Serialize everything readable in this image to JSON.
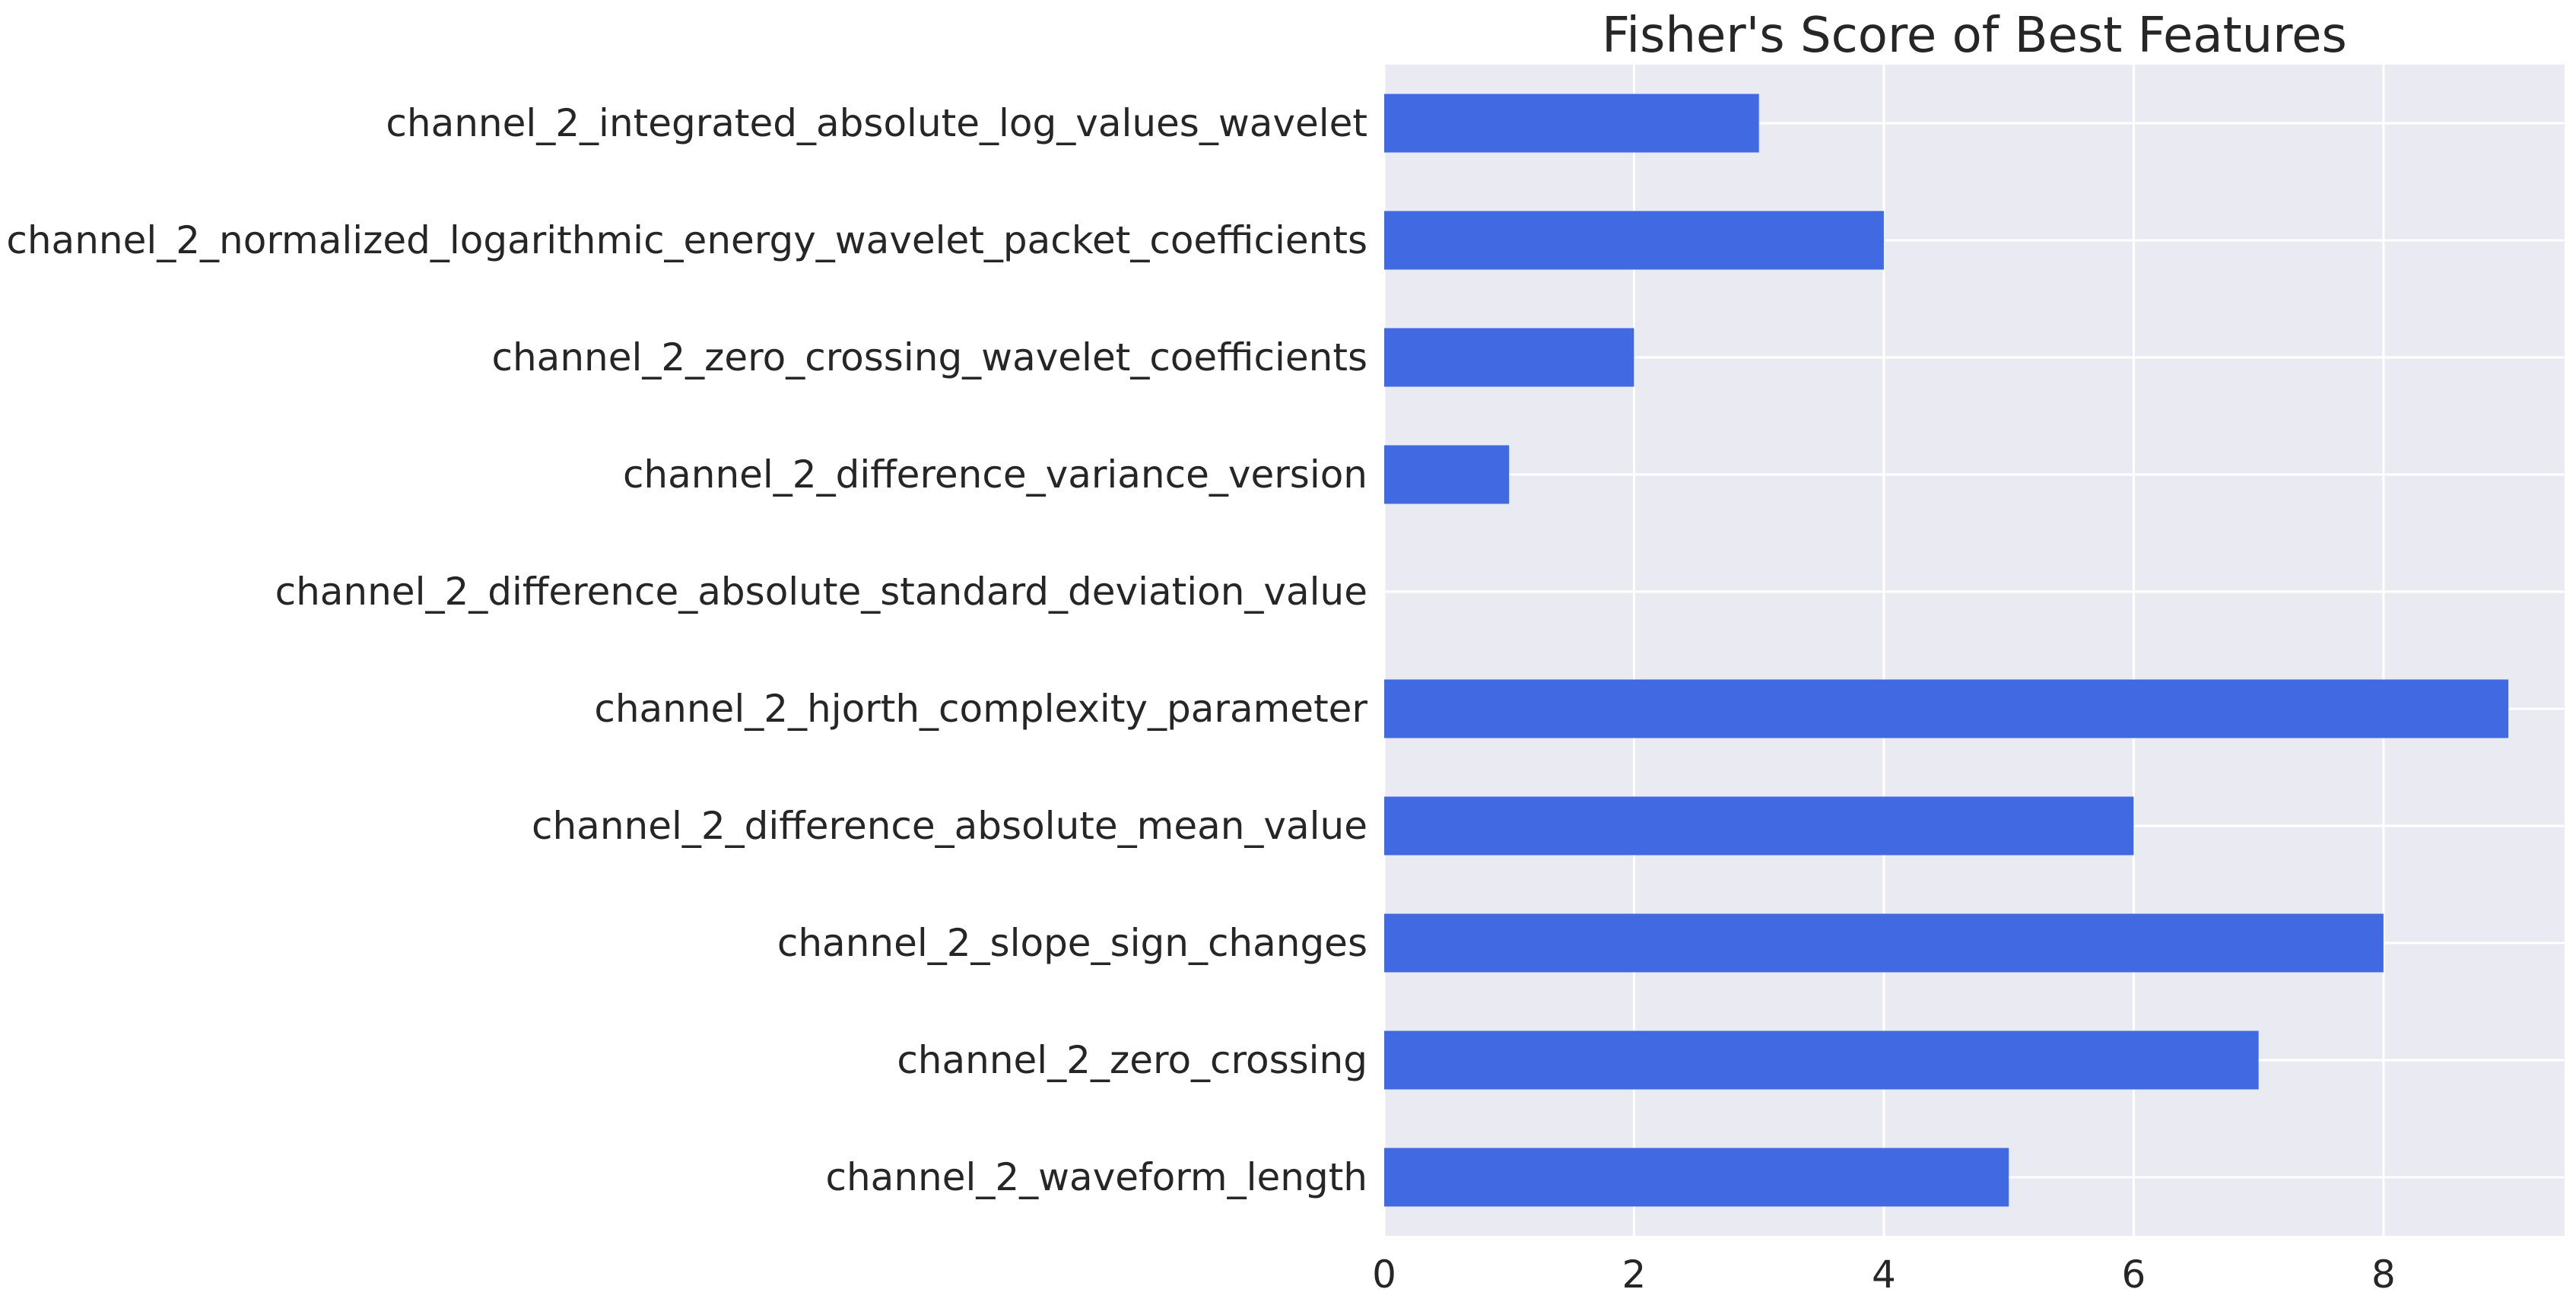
{
  "chart_data": {
    "type": "bar",
    "orientation": "horizontal",
    "title": "Fisher's Score of Best Features",
    "xlabel": "",
    "ylabel": "",
    "categories": [
      "channel_2_integrated_absolute_log_values_wavelet",
      "channel_2_normalized_logarithmic_energy_wavelet_packet_coefficients",
      "channel_2_zero_crossing_wavelet_coefficients",
      "channel_2_difference_variance_version",
      "channel_2_difference_absolute_standard_deviation_value",
      "channel_2_hjorth_complexity_parameter",
      "channel_2_difference_absolute_mean_value",
      "channel_2_slope_sign_changes",
      "channel_2_zero_crossing",
      "channel_2_waveform_length"
    ],
    "values": [
      3,
      4,
      2,
      1,
      0,
      9,
      6,
      8,
      7,
      5
    ],
    "xlim": [
      0,
      9.45
    ],
    "xticks": [
      0,
      2,
      4,
      6,
      8
    ],
    "grid": true,
    "bar_color": "#4169e1",
    "background_color": "#eaeaf2",
    "grid_color": "#ffffff"
  }
}
